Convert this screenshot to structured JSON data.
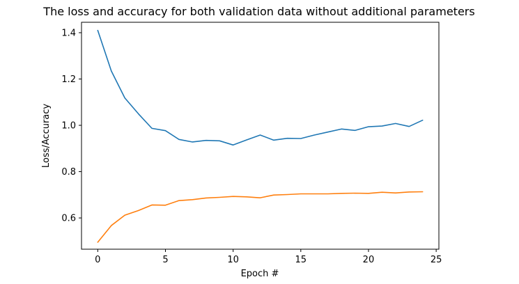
{
  "chart_data": {
    "type": "line",
    "title": "The loss and accuracy for both validation data without additional parameters",
    "xlabel": "Epoch #",
    "ylabel": "Loss/Accuracy",
    "xlim": [
      -1.2,
      25.2
    ],
    "ylim": [
      0.465,
      1.445
    ],
    "xticks": [
      0,
      5,
      10,
      15,
      20,
      25
    ],
    "xtick_labels": [
      "0",
      "5",
      "10",
      "15",
      "20",
      "25"
    ],
    "yticks": [
      0.6,
      0.8,
      1.0,
      1.2,
      1.4
    ],
    "ytick_labels": [
      "0.6",
      "0.8",
      "1.0",
      "1.2",
      "1.4"
    ],
    "grid": false,
    "x": [
      0,
      1,
      2,
      3,
      4,
      5,
      6,
      7,
      8,
      9,
      10,
      11,
      12,
      13,
      14,
      15,
      16,
      17,
      18,
      19,
      20,
      21,
      22,
      23,
      24
    ],
    "series": [
      {
        "color": "#1f77b4",
        "values": [
          1.41,
          1.235,
          1.118,
          1.05,
          0.987,
          0.977,
          0.939,
          0.928,
          0.935,
          0.933,
          0.915,
          0.937,
          0.958,
          0.936,
          0.944,
          0.943,
          0.958,
          0.971,
          0.984,
          0.978,
          0.994,
          0.997,
          1.008,
          0.995,
          1.022
        ]
      },
      {
        "color": "#ff7f0e",
        "values": [
          0.495,
          0.567,
          0.612,
          0.632,
          0.656,
          0.655,
          0.675,
          0.679,
          0.686,
          0.689,
          0.693,
          0.691,
          0.687,
          0.699,
          0.701,
          0.704,
          0.704,
          0.704,
          0.706,
          0.707,
          0.706,
          0.711,
          0.708,
          0.712,
          0.713
        ]
      }
    ]
  }
}
